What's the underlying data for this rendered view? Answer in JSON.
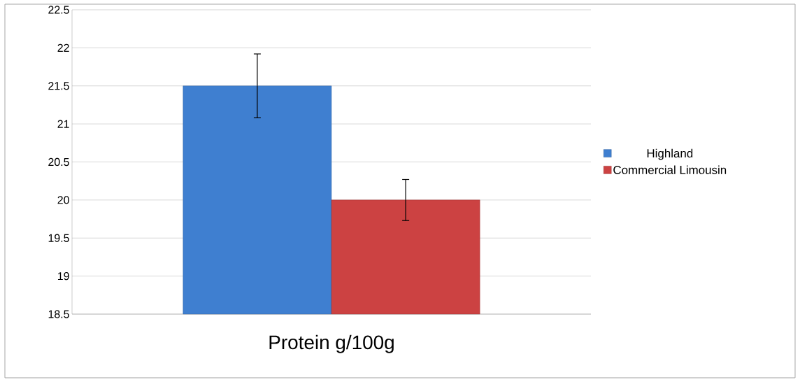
{
  "chart_data": {
    "type": "bar",
    "categories": [
      "Protein g/100g"
    ],
    "series": [
      {
        "name": "Highland",
        "color": "#3f7fd0",
        "values": [
          21.5
        ],
        "errors": [
          0.42
        ]
      },
      {
        "name": "Commercial Limousin",
        "color": "#cc4242",
        "values": [
          20.0
        ],
        "errors": [
          0.27
        ]
      }
    ],
    "ylim": [
      18.5,
      22.5
    ],
    "yticks": [
      18.5,
      19,
      19.5,
      20,
      20.5,
      21,
      21.5,
      22,
      22.5
    ],
    "grid": "y",
    "legend": "right"
  }
}
